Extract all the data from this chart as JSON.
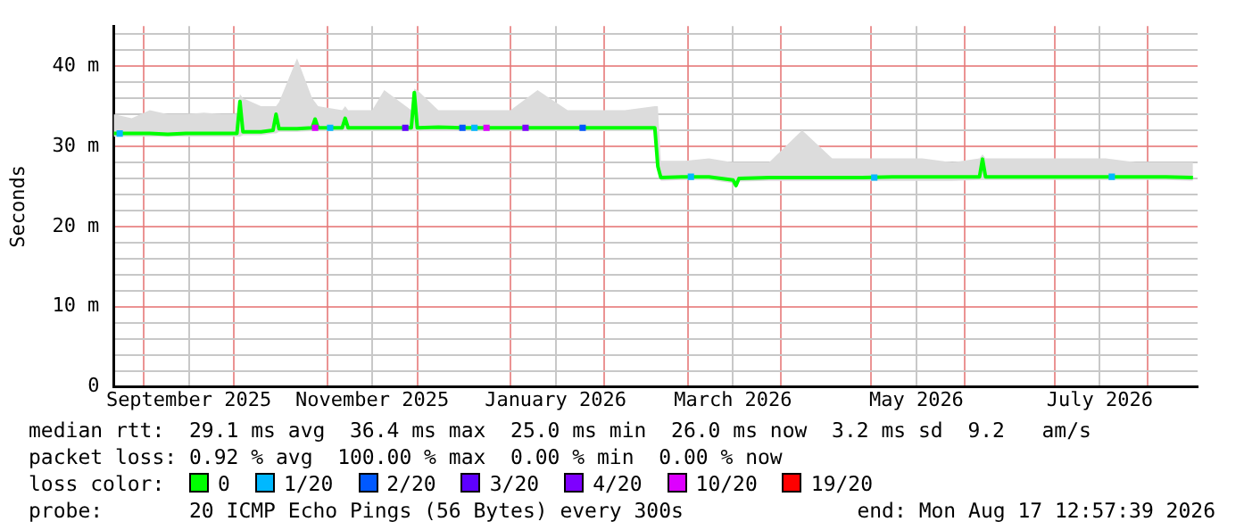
{
  "chart_data": {
    "type": "line",
    "ylabel": "Seconds",
    "legend": "bottom",
    "legend_title": "loss color:",
    "grid": true,
    "marker": "none",
    "xlim": [
      "2025-08-22",
      "2026-08-17T12:57"
    ],
    "xticks": [
      {
        "value": "2025-09-01",
        "label": null
      },
      {
        "value": "2025-09-16",
        "label": "September 2025"
      },
      {
        "value": "2025-10-01",
        "label": null
      },
      {
        "value": "2025-11-01",
        "label": null
      },
      {
        "value": "2025-11-16",
        "label": "November 2025"
      },
      {
        "value": "2025-12-01",
        "label": null
      },
      {
        "value": "2026-01-01",
        "label": null
      },
      {
        "value": "2026-01-16",
        "label": "January 2026"
      },
      {
        "value": "2026-02-01",
        "label": null
      },
      {
        "value": "2026-03-01",
        "label": null
      },
      {
        "value": "2026-03-16",
        "label": "March 2026"
      },
      {
        "value": "2026-04-01",
        "label": null
      },
      {
        "value": "2026-05-01",
        "label": null
      },
      {
        "value": "2026-05-16",
        "label": "May 2026"
      },
      {
        "value": "2026-06-01",
        "label": null
      },
      {
        "value": "2026-07-01",
        "label": null
      },
      {
        "value": "2026-07-16",
        "label": "July 2026"
      },
      {
        "value": "2026-08-01",
        "label": null
      }
    ],
    "ylim": [
      0,
      45
    ],
    "yticks": [
      0,
      {
        "value": 2,
        "label": null
      },
      {
        "value": 4,
        "label": null
      },
      {
        "value": 6,
        "label": null
      },
      {
        "value": 8,
        "label": null
      },
      {
        "value": 10,
        "label": "10 m"
      },
      {
        "value": 12,
        "label": null
      },
      {
        "value": 14,
        "label": null
      },
      {
        "value": 16,
        "label": null
      },
      {
        "value": 18,
        "label": null
      },
      {
        "value": 20,
        "label": "20 m"
      },
      {
        "value": 22,
        "label": null
      },
      {
        "value": 24,
        "label": null
      },
      {
        "value": 26,
        "label": null
      },
      {
        "value": 28,
        "label": null
      },
      {
        "value": 30,
        "label": "30 m"
      },
      {
        "value": 32,
        "label": null
      },
      {
        "value": 34,
        "label": null
      },
      {
        "value": 36,
        "label": null
      },
      {
        "value": 38,
        "label": null
      },
      {
        "value": 40,
        "label": "40 m"
      },
      {
        "value": 42,
        "label": null
      },
      {
        "value": 44,
        "label": null
      }
    ],
    "x": [
      "2025-08-22",
      "2025-08-28",
      "2025-09-03",
      "2025-09-09",
      "2025-09-15",
      "2025-09-21",
      "2025-09-27",
      "2025-10-02",
      "2025-10-03",
      "2025-10-04",
      "2025-10-10",
      "2025-10-14",
      "2025-10-15",
      "2025-10-16",
      "2025-10-22",
      "2025-10-27",
      "2025-10-28",
      "2025-10-29",
      "2025-11-06",
      "2025-11-07",
      "2025-11-08",
      "2025-11-16",
      "2025-11-20",
      "2025-11-29",
      "2025-11-30",
      "2025-12-01",
      "2025-12-08",
      "2025-12-16",
      "2025-12-24",
      "2026-01-01",
      "2026-01-10",
      "2026-01-20",
      "2026-01-30",
      "2026-02-08",
      "2026-02-18",
      "2026-02-19",
      "2026-02-20",
      "2026-02-28",
      "2026-03-08",
      "2026-03-16",
      "2026-03-17",
      "2026-03-18",
      "2026-03-28",
      "2026-04-08",
      "2026-04-18",
      "2026-04-28",
      "2026-05-08",
      "2026-05-18",
      "2026-05-28",
      "2026-06-06",
      "2026-06-07",
      "2026-06-08",
      "2026-06-18",
      "2026-06-28",
      "2026-07-08",
      "2026-07-18",
      "2026-07-28",
      "2026-08-07",
      "2026-08-16"
    ],
    "series": [
      {
        "name": "0",
        "color": "#00ff00",
        "values": [
          31.6,
          31.6,
          31.6,
          31.5,
          31.6,
          31.6,
          31.6,
          31.6,
          35.6,
          31.8,
          31.8,
          32,
          34,
          32.2,
          32.2,
          32.3,
          33.4,
          32.3,
          32.3,
          33.5,
          32.3,
          32.3,
          32.3,
          32.3,
          36.7,
          32.3,
          32.4,
          32.3,
          32.3,
          32.3,
          32.3,
          32.3,
          32.3,
          32.3,
          32.3,
          27.5,
          26.1,
          26.2,
          26.2,
          25.8,
          25.1,
          26,
          26.1,
          26.1,
          26.1,
          26.1,
          26.2,
          26.2,
          26.2,
          26.2,
          28.4,
          26.2,
          26.2,
          26.2,
          26.2,
          26.2,
          26.2,
          26.2,
          26.1
        ],
        "lower": [
          31.2,
          31.2,
          31.2,
          31.2,
          31.2,
          31.2,
          31.2,
          31.2,
          31.2,
          31.4,
          31.4,
          31.6,
          31.6,
          31.8,
          31.8,
          31.9,
          31.9,
          31.9,
          31.9,
          31.9,
          31.9,
          31.9,
          31.9,
          31.9,
          31.9,
          31.9,
          31.9,
          31.9,
          31.9,
          31.9,
          31.9,
          31.9,
          31.9,
          31.9,
          31.9,
          27.2,
          25.7,
          25.8,
          25.8,
          25.4,
          24.8,
          25.6,
          25.7,
          25.7,
          25.7,
          25.7,
          25.7,
          25.7,
          25.7,
          25.8,
          25.8,
          25.8,
          25.8,
          25.8,
          25.8,
          25.8,
          25.8,
          25.8,
          25.7
        ],
        "upper": [
          34,
          33.5,
          34.5,
          34,
          34,
          34.2,
          34,
          34,
          36.5,
          36,
          35,
          35,
          35,
          35.5,
          41,
          36,
          35.5,
          35,
          34.5,
          35,
          34.5,
          34.5,
          37,
          34.5,
          37.2,
          37,
          34.5,
          34.5,
          34.5,
          34.5,
          37,
          34.5,
          34.5,
          34.5,
          35,
          35,
          28.2,
          28.2,
          28.5,
          28,
          28,
          28,
          28,
          32,
          28.5,
          28.5,
          28.5,
          28.5,
          28,
          28.5,
          29,
          28.5,
          28.5,
          28.5,
          28.5,
          28.5,
          28,
          28,
          28
        ]
      },
      {
        "name": "1/20",
        "color": "#00b8ff",
        "type": "scatter",
        "marker": "square",
        "x": [
          "2025-08-24",
          "2025-11-02",
          "2025-12-20",
          "2026-03-02",
          "2026-05-02",
          "2026-07-20"
        ],
        "values": [
          31.6,
          32.3,
          32.3,
          26.2,
          26.1,
          26.2
        ]
      },
      {
        "name": "2/20",
        "color": "#0059ff",
        "type": "scatter",
        "marker": "square",
        "x": [
          "2025-12-16",
          "2026-01-25"
        ],
        "values": [
          32.3,
          32.3
        ]
      },
      {
        "name": "3/20",
        "color": "#5e00ff",
        "type": "scatter",
        "marker": "square",
        "x": [
          "2025-11-27"
        ],
        "values": [
          32.3
        ]
      },
      {
        "name": "4/20",
        "color": "#7e00ff",
        "type": "scatter",
        "marker": "square",
        "x": [
          "2026-01-06"
        ],
        "values": [
          32.3
        ]
      },
      {
        "name": "10/20",
        "color": "#dd00ff",
        "type": "scatter",
        "marker": "square",
        "x": [
          "2025-10-28",
          "2025-12-24"
        ],
        "values": [
          32.3,
          32.3
        ]
      },
      {
        "name": "19/20",
        "color": "#ff0000",
        "type": "scatter",
        "marker": "square",
        "values": [
          null,
          null,
          null,
          null,
          null,
          null,
          null,
          null,
          null,
          null,
          null,
          null,
          null,
          null,
          null,
          null,
          null,
          null,
          null,
          null,
          null,
          null,
          null,
          null,
          null,
          null,
          null,
          null,
          null,
          null,
          null,
          null,
          null,
          null,
          null,
          null,
          null,
          null,
          null,
          null,
          null,
          null,
          null,
          null,
          null,
          null,
          null,
          null,
          null,
          null,
          null,
          null,
          null,
          null,
          null,
          null,
          null,
          null,
          null
        ]
      }
    ],
    "annotations": [
      "median rtt:  29.1 ms avg  36.4 ms max  25.0 ms min  26.0 ms now  3.2 ms sd  9.2   am/s",
      "packet loss: 0.92 % avg  100.00 % max  0.00 % min  0.00 % now",
      "probe:       20 ICMP Echo Pings (56 Bytes) every 300s",
      "end: Mon Aug 17 12:57:39 2026"
    ]
  }
}
